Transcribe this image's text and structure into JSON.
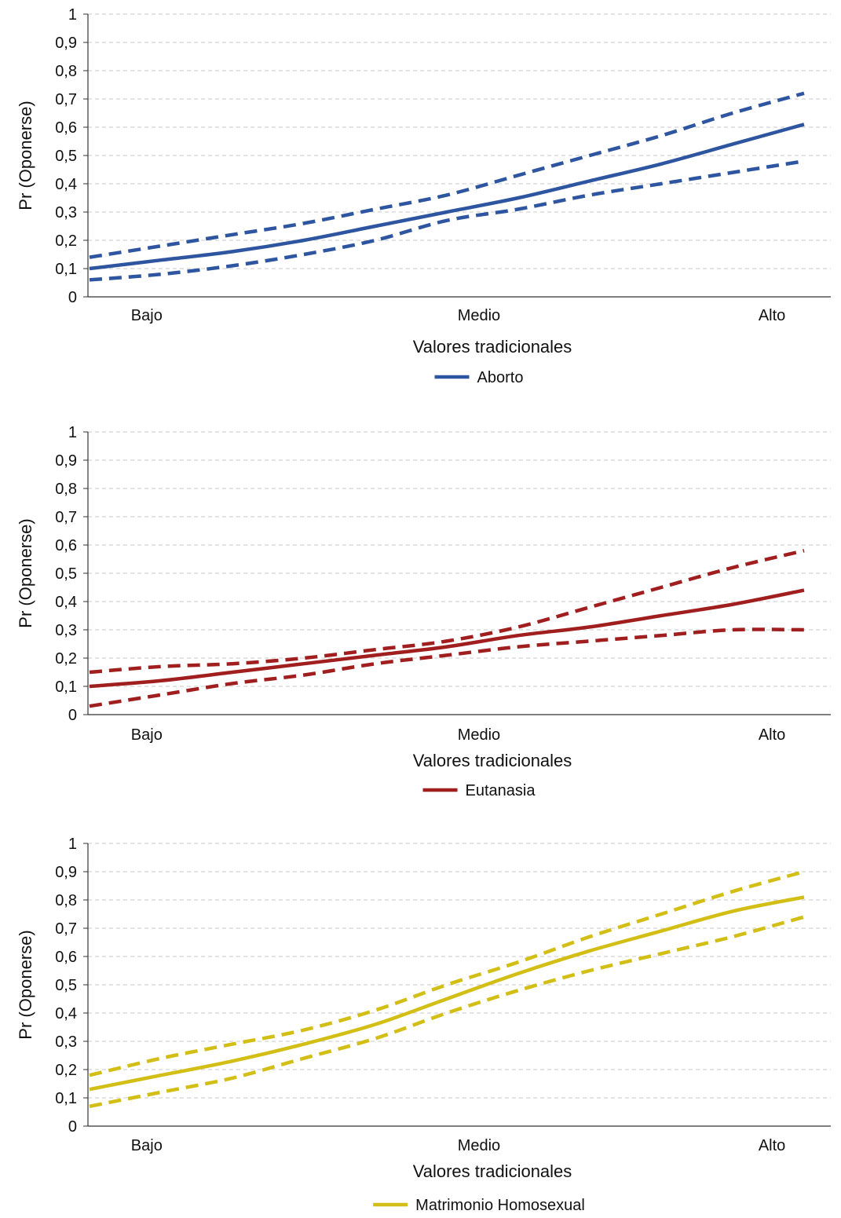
{
  "chart_data": [
    {
      "type": "line",
      "xlabel": "Valores tradicionales",
      "ylabel": "Pr (Oponerse)",
      "ylim": [
        0,
        1
      ],
      "y_ticks": [
        "0",
        "0,1",
        "0,2",
        "0,3",
        "0,4",
        "0,5",
        "0,6",
        "0,7",
        "0,8",
        "0,9",
        "1"
      ],
      "x_ticks": [
        "Bajo",
        "Medio",
        "Alto"
      ],
      "grid": "horizontal dashed",
      "legend_position": "bottom-center",
      "color": "#2E55A0",
      "x": [
        0,
        0.1,
        0.2,
        0.3,
        0.4,
        0.5,
        0.6,
        0.7,
        0.8,
        0.9,
        1.0
      ],
      "series": [
        {
          "name": "Aborto",
          "role": "estimate",
          "values": [
            0.1,
            0.13,
            0.16,
            0.2,
            0.25,
            0.3,
            0.35,
            0.41,
            0.47,
            0.54,
            0.61
          ]
        },
        {
          "role": "upper",
          "values": [
            0.14,
            0.18,
            0.22,
            0.26,
            0.31,
            0.36,
            0.43,
            0.5,
            0.57,
            0.65,
            0.72
          ]
        },
        {
          "role": "lower",
          "values": [
            0.06,
            0.08,
            0.11,
            0.15,
            0.2,
            0.27,
            0.31,
            0.36,
            0.4,
            0.44,
            0.48
          ]
        }
      ]
    },
    {
      "type": "line",
      "xlabel": "Valores tradicionales",
      "ylabel": "Pr (Oponerse)",
      "ylim": [
        0,
        1
      ],
      "y_ticks": [
        "0",
        "0,1",
        "0,2",
        "0,3",
        "0,4",
        "0,5",
        "0,6",
        "0,7",
        "0,8",
        "0,9",
        "1"
      ],
      "x_ticks": [
        "Bajo",
        "Medio",
        "Alto"
      ],
      "grid": "horizontal dashed",
      "legend_position": "bottom-center",
      "color": "#A01E1E",
      "x": [
        0,
        0.1,
        0.2,
        0.3,
        0.4,
        0.5,
        0.6,
        0.7,
        0.8,
        0.9,
        1.0
      ],
      "series": [
        {
          "name": "Eutanasia",
          "role": "estimate",
          "values": [
            0.1,
            0.12,
            0.15,
            0.18,
            0.21,
            0.24,
            0.28,
            0.31,
            0.35,
            0.39,
            0.44
          ]
        },
        {
          "role": "upper",
          "values": [
            0.15,
            0.17,
            0.18,
            0.2,
            0.23,
            0.26,
            0.31,
            0.38,
            0.45,
            0.52,
            0.58
          ]
        },
        {
          "role": "lower",
          "values": [
            0.03,
            0.07,
            0.11,
            0.14,
            0.18,
            0.21,
            0.24,
            0.26,
            0.28,
            0.3,
            0.3
          ]
        }
      ]
    },
    {
      "type": "line",
      "xlabel": "Valores tradicionales",
      "ylabel": "Pr (Oponerse)",
      "ylim": [
        0,
        1
      ],
      "y_ticks": [
        "0",
        "0,1",
        "0,2",
        "0,3",
        "0,4",
        "0,5",
        "0,6",
        "0,7",
        "0,8",
        "0,9",
        "1"
      ],
      "x_ticks": [
        "Bajo",
        "Medio",
        "Alto"
      ],
      "grid": "horizontal dashed",
      "legend_position": "bottom-center",
      "color": "#D2BE14",
      "x": [
        0,
        0.1,
        0.2,
        0.3,
        0.4,
        0.5,
        0.6,
        0.7,
        0.8,
        0.9,
        1.0
      ],
      "series": [
        {
          "name": "Matrimonio Homosexual",
          "role": "estimate",
          "values": [
            0.13,
            0.18,
            0.23,
            0.29,
            0.36,
            0.45,
            0.54,
            0.62,
            0.69,
            0.76,
            0.81
          ]
        },
        {
          "role": "upper",
          "values": [
            0.18,
            0.24,
            0.29,
            0.34,
            0.41,
            0.5,
            0.58,
            0.67,
            0.75,
            0.83,
            0.9
          ]
        },
        {
          "role": "lower",
          "values": [
            0.07,
            0.12,
            0.17,
            0.24,
            0.31,
            0.4,
            0.48,
            0.55,
            0.61,
            0.67,
            0.74
          ]
        }
      ]
    }
  ]
}
